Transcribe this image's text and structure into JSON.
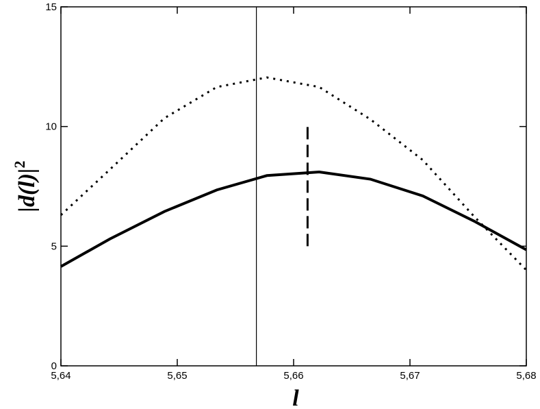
{
  "chart_data": {
    "type": "line",
    "xlabel": "l",
    "ylabel": {
      "text": "|d(l)|",
      "superscript": "2"
    },
    "xlim": [
      5.64,
      5.68
    ],
    "ylim": [
      0,
      15
    ],
    "xticks": [
      {
        "value": 5.64,
        "label": "5,64"
      },
      {
        "value": 5.65,
        "label": "5,65"
      },
      {
        "value": 5.66,
        "label": "5,66"
      },
      {
        "value": 5.67,
        "label": "5,67"
      },
      {
        "value": 5.68,
        "label": "5,68"
      }
    ],
    "yticks": [
      0,
      5,
      10,
      15
    ],
    "grid": false,
    "series": [
      {
        "color": "#000000",
        "style": "solid",
        "x": [
          5.64,
          5.6442,
          5.6489,
          5.6534,
          5.6577,
          5.6622,
          5.6666,
          5.6711,
          5.6755,
          5.68
        ],
        "values": [
          4.15,
          5.3,
          6.45,
          7.35,
          7.95,
          8.1,
          7.8,
          7.1,
          6.05,
          4.85
        ]
      },
      {
        "color": "#000000",
        "style": "dotted",
        "x": [
          5.64,
          5.6442,
          5.6489,
          5.6534,
          5.6577,
          5.6622,
          5.6666,
          5.6711,
          5.6755,
          5.68
        ],
        "values": [
          6.3,
          8.2,
          10.35,
          11.65,
          12.05,
          11.65,
          10.3,
          8.6,
          6.25,
          4.0
        ]
      }
    ],
    "vlines": [
      {
        "x": 5.6568,
        "ymin": 0,
        "ymax": 15,
        "style": "solid"
      },
      {
        "x": 5.6612,
        "ymin": 5,
        "ymax": 10,
        "style": "dashed"
      }
    ]
  }
}
